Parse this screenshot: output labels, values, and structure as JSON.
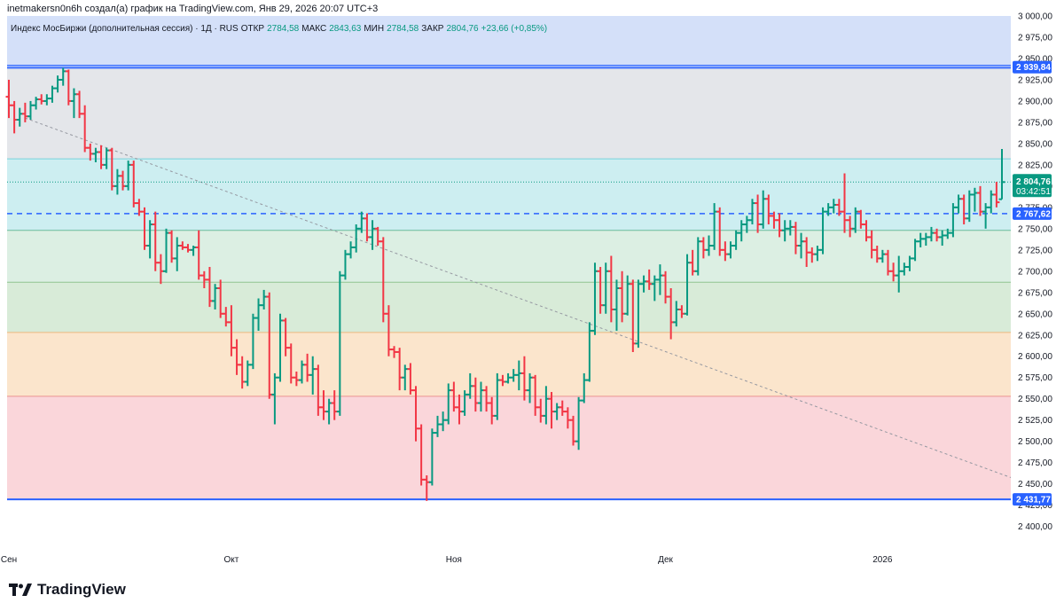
{
  "caption": "inetmakersn0n6h создал(а) график на TradingView.com, Янв 29, 2026 20:07 UTC+3",
  "legend": {
    "symbol": "Индекс МосБиржи (дополнительная сессия) · 1Д · RUS",
    "open_label": "ОТКР",
    "open_value": "2784,58",
    "high_label": "МАКС",
    "high_value": "2843,63",
    "low_label": "МИН",
    "low_value": "2784,58",
    "close_label": "ЗАКР",
    "close_value": "2804,76",
    "change": "+23,66 (+0,85%)"
  },
  "logo_text": "TradingView",
  "colors": {
    "up": "#089981",
    "down": "#f23645",
    "blue_line": "#2962ff",
    "zone_top": "#d4e0f9",
    "zone_grey": "#e4e6ea",
    "zone_cyan": "#cdeef1",
    "zone_green": "#dcefe3",
    "zone_green2": "#d8ebd8",
    "zone_orange": "#fbe5cc",
    "zone_red": "#fad6da"
  },
  "chart_data": {
    "type": "ohlc",
    "ylim": [
      2385,
      3000
    ],
    "y_ticks": [
      "2 400,00",
      "2 425,00",
      "2 450,00",
      "2 475,00",
      "2 500,00",
      "2 525,00",
      "2 550,00",
      "2 575,00",
      "2 600,00",
      "2 625,00",
      "2 650,00",
      "2 675,00",
      "2 700,00",
      "2 725,00",
      "2 750,00",
      "2 775,00",
      "2 800,00",
      "2 825,00",
      "2 850,00",
      "2 875,00",
      "2 900,00",
      "2 925,00",
      "2 950,00",
      "2 975,00",
      "3 000,00"
    ],
    "x_ticks": [
      {
        "label": "Сен",
        "bar": 0
      },
      {
        "label": "Окт",
        "bar": 41
      },
      {
        "label": "Ноя",
        "bar": 82
      },
      {
        "label": "Дек",
        "bar": 121
      },
      {
        "label": "2026",
        "bar": 161
      }
    ],
    "zones": [
      {
        "from": 2939.84,
        "to": 3000,
        "color": "zone_top"
      },
      {
        "from": 2832,
        "to": 2939.84,
        "color": "zone_grey"
      },
      {
        "from": 2748,
        "to": 2832,
        "color": "zone_cyan"
      },
      {
        "from": 2687,
        "to": 2748,
        "color": "zone_green"
      },
      {
        "from": 2628,
        "to": 2687,
        "color": "zone_green2"
      },
      {
        "from": 2553,
        "to": 2628,
        "color": "zone_orange"
      },
      {
        "from": 2431.77,
        "to": 2553,
        "color": "zone_red"
      }
    ],
    "level_lines": [
      {
        "value": 2939.84,
        "label": "2 939,84",
        "style": "solid-double"
      },
      {
        "value": 2767.62,
        "label": "2 767,62",
        "style": "dashed"
      },
      {
        "value": 2431.77,
        "label": "2 431,77",
        "style": "solid"
      }
    ],
    "last_price": {
      "value": 2804.76,
      "label": "2 804,76",
      "countdown": "03:42:51"
    },
    "trendline": {
      "from": {
        "bar": 3,
        "value": 2880
      },
      "to": {
        "bar": 193,
        "value": 2438
      }
    },
    "bars": [
      {
        "o": 2905,
        "h": 2925,
        "l": 2880,
        "c": 2895
      },
      {
        "o": 2895,
        "h": 2900,
        "l": 2862,
        "c": 2878
      },
      {
        "o": 2878,
        "h": 2892,
        "l": 2870,
        "c": 2885
      },
      {
        "o": 2885,
        "h": 2898,
        "l": 2875,
        "c": 2882
      },
      {
        "o": 2882,
        "h": 2900,
        "l": 2878,
        "c": 2895
      },
      {
        "o": 2895,
        "h": 2905,
        "l": 2890,
        "c": 2902
      },
      {
        "o": 2902,
        "h": 2908,
        "l": 2896,
        "c": 2900
      },
      {
        "o": 2900,
        "h": 2908,
        "l": 2895,
        "c": 2903
      },
      {
        "o": 2903,
        "h": 2918,
        "l": 2898,
        "c": 2915
      },
      {
        "o": 2915,
        "h": 2930,
        "l": 2910,
        "c": 2925
      },
      {
        "o": 2925,
        "h": 2939,
        "l": 2918,
        "c": 2935
      },
      {
        "o": 2935,
        "h": 2937,
        "l": 2895,
        "c": 2900
      },
      {
        "o": 2900,
        "h": 2915,
        "l": 2880,
        "c": 2908
      },
      {
        "o": 2908,
        "h": 2912,
        "l": 2880,
        "c": 2885
      },
      {
        "o": 2885,
        "h": 2895,
        "l": 2840,
        "c": 2845
      },
      {
        "o": 2845,
        "h": 2850,
        "l": 2830,
        "c": 2838
      },
      {
        "o": 2838,
        "h": 2845,
        "l": 2828,
        "c": 2840
      },
      {
        "o": 2840,
        "h": 2848,
        "l": 2820,
        "c": 2825
      },
      {
        "o": 2825,
        "h": 2845,
        "l": 2820,
        "c": 2842
      },
      {
        "o": 2842,
        "h": 2845,
        "l": 2795,
        "c": 2800
      },
      {
        "o": 2800,
        "h": 2820,
        "l": 2790,
        "c": 2812
      },
      {
        "o": 2812,
        "h": 2818,
        "l": 2795,
        "c": 2800
      },
      {
        "o": 2800,
        "h": 2830,
        "l": 2795,
        "c": 2825
      },
      {
        "o": 2825,
        "h": 2830,
        "l": 2775,
        "c": 2780
      },
      {
        "o": 2780,
        "h": 2785,
        "l": 2765,
        "c": 2770
      },
      {
        "o": 2770,
        "h": 2775,
        "l": 2725,
        "c": 2730
      },
      {
        "o": 2730,
        "h": 2760,
        "l": 2715,
        "c": 2755
      },
      {
        "o": 2755,
        "h": 2770,
        "l": 2700,
        "c": 2710
      },
      {
        "o": 2710,
        "h": 2720,
        "l": 2685,
        "c": 2700
      },
      {
        "o": 2700,
        "h": 2750,
        "l": 2698,
        "c": 2745
      },
      {
        "o": 2745,
        "h": 2748,
        "l": 2710,
        "c": 2715
      },
      {
        "o": 2715,
        "h": 2740,
        "l": 2700,
        "c": 2730
      },
      {
        "o": 2730,
        "h": 2735,
        "l": 2725,
        "c": 2728
      },
      {
        "o": 2728,
        "h": 2732,
        "l": 2722,
        "c": 2725
      },
      {
        "o": 2725,
        "h": 2730,
        "l": 2718,
        "c": 2728
      },
      {
        "o": 2728,
        "h": 2748,
        "l": 2690,
        "c": 2695
      },
      {
        "o": 2695,
        "h": 2700,
        "l": 2680,
        "c": 2690
      },
      {
        "o": 2690,
        "h": 2705,
        "l": 2658,
        "c": 2665
      },
      {
        "o": 2665,
        "h": 2685,
        "l": 2655,
        "c": 2680
      },
      {
        "o": 2680,
        "h": 2690,
        "l": 2645,
        "c": 2650
      },
      {
        "o": 2650,
        "h": 2658,
        "l": 2635,
        "c": 2640
      },
      {
        "o": 2640,
        "h": 2660,
        "l": 2600,
        "c": 2610
      },
      {
        "o": 2610,
        "h": 2620,
        "l": 2578,
        "c": 2590
      },
      {
        "o": 2590,
        "h": 2600,
        "l": 2562,
        "c": 2570
      },
      {
        "o": 2570,
        "h": 2595,
        "l": 2565,
        "c": 2590
      },
      {
        "o": 2590,
        "h": 2650,
        "l": 2585,
        "c": 2645
      },
      {
        "o": 2645,
        "h": 2668,
        "l": 2630,
        "c": 2660
      },
      {
        "o": 2660,
        "h": 2678,
        "l": 2655,
        "c": 2670
      },
      {
        "o": 2670,
        "h": 2675,
        "l": 2550,
        "c": 2555
      },
      {
        "o": 2555,
        "h": 2580,
        "l": 2520,
        "c": 2575
      },
      {
        "o": 2575,
        "h": 2650,
        "l": 2570,
        "c": 2642
      },
      {
        "o": 2642,
        "h": 2645,
        "l": 2600,
        "c": 2610
      },
      {
        "o": 2610,
        "h": 2615,
        "l": 2568,
        "c": 2575
      },
      {
        "o": 2575,
        "h": 2582,
        "l": 2565,
        "c": 2572
      },
      {
        "o": 2572,
        "h": 2595,
        "l": 2568,
        "c": 2590
      },
      {
        "o": 2590,
        "h": 2603,
        "l": 2570,
        "c": 2578
      },
      {
        "o": 2578,
        "h": 2600,
        "l": 2555,
        "c": 2585
      },
      {
        "o": 2585,
        "h": 2590,
        "l": 2530,
        "c": 2540
      },
      {
        "o": 2540,
        "h": 2560,
        "l": 2525,
        "c": 2535
      },
      {
        "o": 2535,
        "h": 2550,
        "l": 2520,
        "c": 2545
      },
      {
        "o": 2545,
        "h": 2560,
        "l": 2525,
        "c": 2535
      },
      {
        "o": 2535,
        "h": 2700,
        "l": 2530,
        "c": 2695
      },
      {
        "o": 2695,
        "h": 2725,
        "l": 2690,
        "c": 2720
      },
      {
        "o": 2720,
        "h": 2735,
        "l": 2715,
        "c": 2728
      },
      {
        "o": 2728,
        "h": 2755,
        "l": 2722,
        "c": 2750
      },
      {
        "o": 2750,
        "h": 2770,
        "l": 2745,
        "c": 2762
      },
      {
        "o": 2762,
        "h": 2768,
        "l": 2735,
        "c": 2740
      },
      {
        "o": 2740,
        "h": 2760,
        "l": 2725,
        "c": 2750
      },
      {
        "o": 2750,
        "h": 2752,
        "l": 2730,
        "c": 2735
      },
      {
        "o": 2735,
        "h": 2740,
        "l": 2640,
        "c": 2650
      },
      {
        "o": 2650,
        "h": 2660,
        "l": 2600,
        "c": 2608
      },
      {
        "o": 2608,
        "h": 2612,
        "l": 2598,
        "c": 2605
      },
      {
        "o": 2605,
        "h": 2610,
        "l": 2560,
        "c": 2575
      },
      {
        "o": 2575,
        "h": 2590,
        "l": 2560,
        "c": 2585
      },
      {
        "o": 2585,
        "h": 2592,
        "l": 2555,
        "c": 2560
      },
      {
        "o": 2560,
        "h": 2565,
        "l": 2500,
        "c": 2515
      },
      {
        "o": 2515,
        "h": 2520,
        "l": 2448,
        "c": 2455
      },
      {
        "o": 2455,
        "h": 2460,
        "l": 2430,
        "c": 2452
      },
      {
        "o": 2452,
        "h": 2515,
        "l": 2448,
        "c": 2510
      },
      {
        "o": 2510,
        "h": 2530,
        "l": 2505,
        "c": 2520
      },
      {
        "o": 2520,
        "h": 2535,
        "l": 2512,
        "c": 2525
      },
      {
        "o": 2525,
        "h": 2568,
        "l": 2520,
        "c": 2560
      },
      {
        "o": 2560,
        "h": 2570,
        "l": 2535,
        "c": 2540
      },
      {
        "o": 2540,
        "h": 2555,
        "l": 2520,
        "c": 2535
      },
      {
        "o": 2535,
        "h": 2560,
        "l": 2530,
        "c": 2555
      },
      {
        "o": 2555,
        "h": 2580,
        "l": 2550,
        "c": 2565
      },
      {
        "o": 2565,
        "h": 2575,
        "l": 2535,
        "c": 2545
      },
      {
        "o": 2545,
        "h": 2570,
        "l": 2535,
        "c": 2560
      },
      {
        "o": 2560,
        "h": 2565,
        "l": 2535,
        "c": 2545
      },
      {
        "o": 2545,
        "h": 2552,
        "l": 2520,
        "c": 2530
      },
      {
        "o": 2530,
        "h": 2580,
        "l": 2525,
        "c": 2572
      },
      {
        "o": 2572,
        "h": 2578,
        "l": 2565,
        "c": 2570
      },
      {
        "o": 2570,
        "h": 2580,
        "l": 2568,
        "c": 2575
      },
      {
        "o": 2575,
        "h": 2585,
        "l": 2570,
        "c": 2578
      },
      {
        "o": 2578,
        "h": 2595,
        "l": 2560,
        "c": 2580
      },
      {
        "o": 2580,
        "h": 2600,
        "l": 2548,
        "c": 2560
      },
      {
        "o": 2560,
        "h": 2580,
        "l": 2545,
        "c": 2575
      },
      {
        "o": 2575,
        "h": 2578,
        "l": 2530,
        "c": 2540
      },
      {
        "o": 2540,
        "h": 2550,
        "l": 2522,
        "c": 2530
      },
      {
        "o": 2530,
        "h": 2565,
        "l": 2520,
        "c": 2550
      },
      {
        "o": 2550,
        "h": 2558,
        "l": 2515,
        "c": 2535
      },
      {
        "o": 2535,
        "h": 2545,
        "l": 2525,
        "c": 2540
      },
      {
        "o": 2540,
        "h": 2548,
        "l": 2530,
        "c": 2535
      },
      {
        "o": 2535,
        "h": 2540,
        "l": 2515,
        "c": 2525
      },
      {
        "o": 2525,
        "h": 2530,
        "l": 2495,
        "c": 2500
      },
      {
        "o": 2500,
        "h": 2552,
        "l": 2490,
        "c": 2548
      },
      {
        "o": 2548,
        "h": 2580,
        "l": 2545,
        "c": 2572
      },
      {
        "o": 2572,
        "h": 2640,
        "l": 2570,
        "c": 2630
      },
      {
        "o": 2630,
        "h": 2710,
        "l": 2625,
        "c": 2700
      },
      {
        "o": 2700,
        "h": 2705,
        "l": 2650,
        "c": 2660
      },
      {
        "o": 2660,
        "h": 2710,
        "l": 2650,
        "c": 2700
      },
      {
        "o": 2700,
        "h": 2718,
        "l": 2640,
        "c": 2655
      },
      {
        "o": 2655,
        "h": 2690,
        "l": 2630,
        "c": 2680
      },
      {
        "o": 2680,
        "h": 2700,
        "l": 2640,
        "c": 2650
      },
      {
        "o": 2650,
        "h": 2695,
        "l": 2648,
        "c": 2685
      },
      {
        "o": 2685,
        "h": 2690,
        "l": 2605,
        "c": 2615
      },
      {
        "o": 2615,
        "h": 2690,
        "l": 2610,
        "c": 2685
      },
      {
        "o": 2685,
        "h": 2695,
        "l": 2675,
        "c": 2688
      },
      {
        "o": 2688,
        "h": 2702,
        "l": 2678,
        "c": 2685
      },
      {
        "o": 2685,
        "h": 2695,
        "l": 2665,
        "c": 2690
      },
      {
        "o": 2690,
        "h": 2708,
        "l": 2672,
        "c": 2695
      },
      {
        "o": 2695,
        "h": 2700,
        "l": 2662,
        "c": 2670
      },
      {
        "o": 2670,
        "h": 2680,
        "l": 2620,
        "c": 2640
      },
      {
        "o": 2640,
        "h": 2665,
        "l": 2635,
        "c": 2655
      },
      {
        "o": 2655,
        "h": 2660,
        "l": 2645,
        "c": 2650
      },
      {
        "o": 2650,
        "h": 2720,
        "l": 2648,
        "c": 2710
      },
      {
        "o": 2710,
        "h": 2725,
        "l": 2695,
        "c": 2700
      },
      {
        "o": 2700,
        "h": 2740,
        "l": 2695,
        "c": 2735
      },
      {
        "o": 2735,
        "h": 2740,
        "l": 2715,
        "c": 2725
      },
      {
        "o": 2725,
        "h": 2742,
        "l": 2718,
        "c": 2730
      },
      {
        "o": 2730,
        "h": 2780,
        "l": 2725,
        "c": 2770
      },
      {
        "o": 2770,
        "h": 2775,
        "l": 2718,
        "c": 2725
      },
      {
        "o": 2725,
        "h": 2735,
        "l": 2712,
        "c": 2720
      },
      {
        "o": 2720,
        "h": 2735,
        "l": 2715,
        "c": 2730
      },
      {
        "o": 2730,
        "h": 2748,
        "l": 2725,
        "c": 2745
      },
      {
        "o": 2745,
        "h": 2760,
        "l": 2735,
        "c": 2755
      },
      {
        "o": 2755,
        "h": 2765,
        "l": 2745,
        "c": 2760
      },
      {
        "o": 2760,
        "h": 2785,
        "l": 2755,
        "c": 2780
      },
      {
        "o": 2780,
        "h": 2790,
        "l": 2745,
        "c": 2755
      },
      {
        "o": 2755,
        "h": 2795,
        "l": 2750,
        "c": 2785
      },
      {
        "o": 2785,
        "h": 2790,
        "l": 2755,
        "c": 2765
      },
      {
        "o": 2765,
        "h": 2770,
        "l": 2750,
        "c": 2760
      },
      {
        "o": 2760,
        "h": 2768,
        "l": 2740,
        "c": 2748
      },
      {
        "o": 2748,
        "h": 2760,
        "l": 2735,
        "c": 2750
      },
      {
        "o": 2750,
        "h": 2760,
        "l": 2742,
        "c": 2752
      },
      {
        "o": 2752,
        "h": 2758,
        "l": 2720,
        "c": 2730
      },
      {
        "o": 2730,
        "h": 2745,
        "l": 2715,
        "c": 2735
      },
      {
        "o": 2735,
        "h": 2740,
        "l": 2705,
        "c": 2722
      },
      {
        "o": 2722,
        "h": 2728,
        "l": 2710,
        "c": 2720
      },
      {
        "o": 2720,
        "h": 2730,
        "l": 2712,
        "c": 2725
      },
      {
        "o": 2725,
        "h": 2775,
        "l": 2720,
        "c": 2770
      },
      {
        "o": 2770,
        "h": 2780,
        "l": 2765,
        "c": 2775
      },
      {
        "o": 2775,
        "h": 2785,
        "l": 2768,
        "c": 2778
      },
      {
        "o": 2778,
        "h": 2785,
        "l": 2765,
        "c": 2770
      },
      {
        "o": 2770,
        "h": 2815,
        "l": 2745,
        "c": 2760
      },
      {
        "o": 2760,
        "h": 2765,
        "l": 2740,
        "c": 2750
      },
      {
        "o": 2750,
        "h": 2775,
        "l": 2745,
        "c": 2770
      },
      {
        "o": 2770,
        "h": 2772,
        "l": 2750,
        "c": 2755
      },
      {
        "o": 2755,
        "h": 2760,
        "l": 2735,
        "c": 2740
      },
      {
        "o": 2740,
        "h": 2748,
        "l": 2715,
        "c": 2725
      },
      {
        "o": 2725,
        "h": 2730,
        "l": 2710,
        "c": 2715
      },
      {
        "o": 2715,
        "h": 2725,
        "l": 2710,
        "c": 2720
      },
      {
        "o": 2720,
        "h": 2725,
        "l": 2695,
        "c": 2700
      },
      {
        "o": 2700,
        "h": 2710,
        "l": 2688,
        "c": 2695
      },
      {
        "o": 2695,
        "h": 2718,
        "l": 2675,
        "c": 2700
      },
      {
        "o": 2700,
        "h": 2710,
        "l": 2695,
        "c": 2705
      },
      {
        "o": 2705,
        "h": 2718,
        "l": 2700,
        "c": 2715
      },
      {
        "o": 2715,
        "h": 2738,
        "l": 2712,
        "c": 2735
      },
      {
        "o": 2735,
        "h": 2745,
        "l": 2728,
        "c": 2738
      },
      {
        "o": 2738,
        "h": 2745,
        "l": 2730,
        "c": 2740
      },
      {
        "o": 2740,
        "h": 2752,
        "l": 2735,
        "c": 2745
      },
      {
        "o": 2745,
        "h": 2750,
        "l": 2735,
        "c": 2740
      },
      {
        "o": 2740,
        "h": 2748,
        "l": 2730,
        "c": 2742
      },
      {
        "o": 2742,
        "h": 2750,
        "l": 2738,
        "c": 2745
      },
      {
        "o": 2745,
        "h": 2780,
        "l": 2740,
        "c": 2775
      },
      {
        "o": 2775,
        "h": 2790,
        "l": 2768,
        "c": 2785
      },
      {
        "o": 2785,
        "h": 2790,
        "l": 2755,
        "c": 2762
      },
      {
        "o": 2762,
        "h": 2795,
        "l": 2758,
        "c": 2790
      },
      {
        "o": 2790,
        "h": 2798,
        "l": 2770,
        "c": 2792
      },
      {
        "o": 2792,
        "h": 2800,
        "l": 2765,
        "c": 2770
      },
      {
        "o": 2770,
        "h": 2780,
        "l": 2750,
        "c": 2775
      },
      {
        "o": 2775,
        "h": 2795,
        "l": 2768,
        "c": 2790
      },
      {
        "o": 2790,
        "h": 2805,
        "l": 2775,
        "c": 2781
      },
      {
        "o": 2784.58,
        "h": 2843.63,
        "l": 2784.58,
        "c": 2804.76
      }
    ]
  }
}
